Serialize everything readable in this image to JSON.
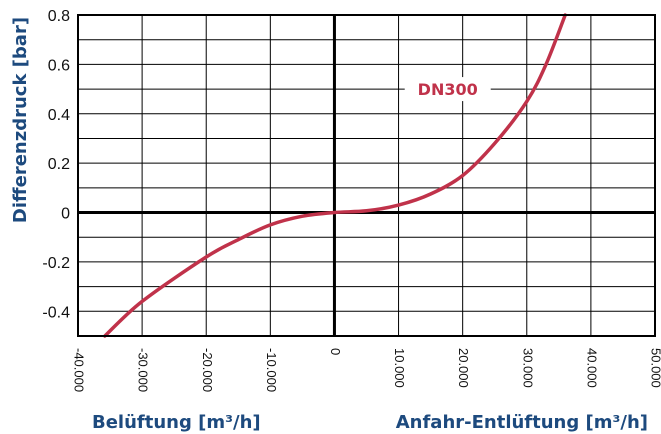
{
  "chart_data": {
    "type": "line",
    "ylabel": "Differenzdruck [bar]",
    "xlabel_left": "Belüftung [m³/h]",
    "xlabel_right": "Anfahr-Entlüftung [m³/h]",
    "xlim": [
      -40000,
      50000
    ],
    "ylim": [
      -0.5,
      0.8
    ],
    "x_ticks": [
      -40000,
      -30000,
      -20000,
      -10000,
      0,
      10000,
      20000,
      30000,
      40000,
      50000
    ],
    "x_tick_labels": [
      "-40.000",
      "-30.000",
      "-20.000",
      "-10.000",
      "0",
      "10.000",
      "20.000",
      "30.000",
      "40.000",
      "50.000"
    ],
    "y_ticks": [
      0.8,
      0.6,
      0.4,
      0.2,
      0,
      -0.2,
      -0.4
    ],
    "y_tick_labels": [
      "0.8",
      "0.6",
      "0.4",
      "0.2",
      "0",
      "-0.2",
      "-0.4"
    ],
    "grid": true,
    "series": [
      {
        "name": "DN300",
        "color": "#c0324a",
        "x": [
          -35800,
          -30000,
          -20000,
          -15000,
          -10000,
          -5000,
          0,
          5000,
          10000,
          15000,
          20000,
          25000,
          30000,
          33000,
          36000
        ],
        "y": [
          -0.5,
          -0.36,
          -0.18,
          -0.11,
          -0.05,
          -0.015,
          0,
          0.007,
          0.03,
          0.075,
          0.15,
          0.28,
          0.45,
          0.6,
          0.8
        ]
      }
    ]
  }
}
